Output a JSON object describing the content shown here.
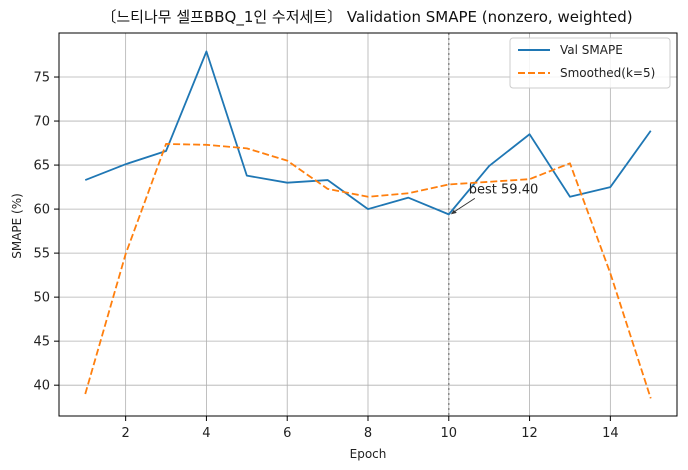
{
  "chart_data": {
    "type": "line",
    "title": "〔느티나무 셀프BBQ_1인 수저세트〕 Validation SMAPE (nonzero, weighted)",
    "xlabel": "Epoch",
    "ylabel": "SMAPE (%)",
    "x": [
      1,
      2,
      3,
      4,
      5,
      6,
      7,
      8,
      9,
      10,
      11,
      12,
      13,
      14,
      15
    ],
    "xlim": [
      0.35,
      15.65
    ],
    "ylim": [
      36.5,
      80
    ],
    "xticks": [
      2,
      4,
      6,
      8,
      10,
      12,
      14
    ],
    "yticks": [
      40,
      45,
      50,
      55,
      60,
      65,
      70,
      75
    ],
    "grid": true,
    "legend_position": "top-right",
    "series": [
      {
        "name": "Val SMAPE",
        "color": "#1f77b4",
        "style": "solid",
        "values": [
          63.3,
          65.1,
          66.6,
          77.9,
          63.8,
          63.0,
          63.3,
          60.0,
          61.3,
          59.4,
          64.9,
          68.5,
          61.4,
          62.5,
          68.9
        ]
      },
      {
        "name": "Smoothed(k=5)",
        "color": "#ff7f0e",
        "style": "dashed",
        "values": [
          39.0,
          54.9,
          67.4,
          67.3,
          66.9,
          65.5,
          62.3,
          61.4,
          61.8,
          62.8,
          63.1,
          63.4,
          65.2,
          52.7,
          38.5
        ]
      }
    ],
    "vline": {
      "x": 10,
      "color": "#888888",
      "style": "dotted"
    },
    "annotation": {
      "text": "best 59.40",
      "x": 10,
      "y": 59.4
    }
  }
}
